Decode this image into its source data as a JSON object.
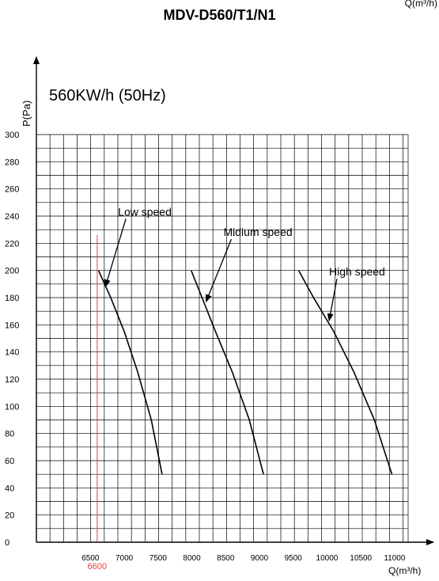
{
  "page": {
    "top_fragment": "Q(m³/h)",
    "title": "MDV-D560/T1/N1"
  },
  "chart_data": {
    "type": "line",
    "title": "MDV-D560/T1/N1",
    "subtitle": "560KW/h (50Hz)",
    "ylabel": "P(Pa)",
    "xlabel": "Q(m³/h)",
    "xlim": [
      5700,
      11200
    ],
    "ylim": [
      0,
      300
    ],
    "x_ticks": [
      6500,
      7000,
      7500,
      8000,
      8500,
      9000,
      9500,
      10000,
      10500,
      11000
    ],
    "y_ticks": [
      0,
      20,
      40,
      60,
      80,
      100,
      120,
      140,
      160,
      180,
      200,
      220,
      240,
      260,
      280,
      300
    ],
    "grid": true,
    "colors": {
      "curve": "#000000",
      "marker": "#e04040",
      "grid": "#000000"
    },
    "series": [
      {
        "name": "Low speed",
        "x": [
          6620,
          6800,
          7000,
          7200,
          7400,
          7560
        ],
        "y": [
          200,
          180,
          155,
          125,
          90,
          50
        ]
      },
      {
        "name": "Midium speed",
        "x": [
          7990,
          8150,
          8350,
          8600,
          8850,
          9060
        ],
        "y": [
          200,
          180,
          155,
          125,
          90,
          50
        ]
      },
      {
        "name": "High speed",
        "x": [
          9580,
          9800,
          10100,
          10400,
          10700,
          10960
        ],
        "y": [
          200,
          180,
          155,
          125,
          90,
          50
        ]
      }
    ],
    "annotations": [
      {
        "text": "Low speed",
        "point_x": 6720,
        "point_y": 188
      },
      {
        "text": "Midium speed",
        "point_x": 8210,
        "point_y": 177
      },
      {
        "text": "High speed",
        "point_x": 10030,
        "point_y": 163
      }
    ],
    "reference_line": {
      "x": 6600,
      "label": "6600"
    }
  }
}
